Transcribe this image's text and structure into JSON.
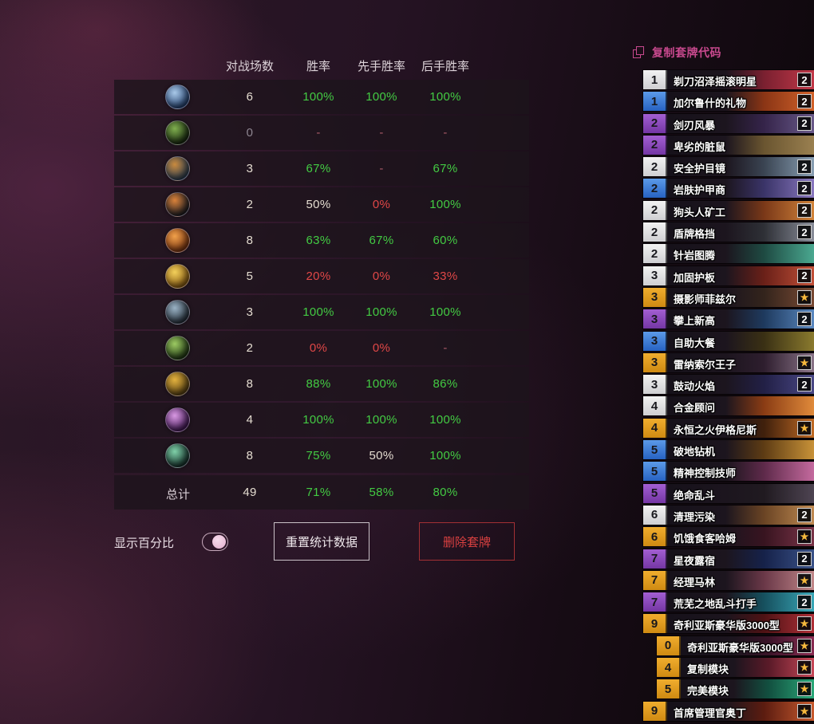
{
  "colors": {
    "positive_green": "#43cb43",
    "negative_red": "#e04747",
    "neutral_value": "#e5ddd1",
    "dimmed_value": "#8d8590",
    "dash_red": "#a85a66",
    "accent_pink": "#c8498e",
    "delete_red": "#d84040",
    "rarity_common": "#dedede",
    "rarity_rare": "#2f6fd0",
    "rarity_epic": "#8b49b8",
    "rarity_legendary": "#e29a1f"
  },
  "stats": {
    "headers": {
      "games": "对战场数",
      "win": "胜率",
      "first": "先手胜率",
      "second": "后手胜率"
    },
    "rows": [
      {
        "class_name": "death-knight",
        "icon_colors": [
          "#a8c8e8",
          "#23406e"
        ],
        "games": "6",
        "games_tone": "neutral",
        "win": "100%",
        "win_tone": "green",
        "first": "100%",
        "first_tone": "green",
        "second": "100%",
        "second_tone": "green"
      },
      {
        "class_name": "demon-hunter",
        "icon_colors": [
          "#7fae4e",
          "#16260e"
        ],
        "games": "0",
        "games_tone": "dim",
        "win": "-",
        "win_tone": "dash",
        "first": "-",
        "first_tone": "dash",
        "second": "-",
        "second_tone": "dash"
      },
      {
        "class_name": "druid",
        "icon_colors": [
          "#c98a3e",
          "#2c3e52"
        ],
        "games": "3",
        "games_tone": "neutral",
        "win": "67%",
        "win_tone": "green",
        "first": "-",
        "first_tone": "dash",
        "second": "67%",
        "second_tone": "green"
      },
      {
        "class_name": "hunter",
        "icon_colors": [
          "#d9823a",
          "#1c1c22"
        ],
        "games": "2",
        "games_tone": "neutral",
        "win": "50%",
        "win_tone": "neutral",
        "first": "0%",
        "first_tone": "red",
        "second": "100%",
        "second_tone": "green"
      },
      {
        "class_name": "mage",
        "icon_colors": [
          "#f0a04a",
          "#7a3410"
        ],
        "games": "8",
        "games_tone": "neutral",
        "win": "63%",
        "win_tone": "green",
        "first": "67%",
        "first_tone": "green",
        "second": "60%",
        "second_tone": "green"
      },
      {
        "class_name": "paladin",
        "icon_colors": [
          "#f2cf5a",
          "#8a5c12"
        ],
        "games": "5",
        "games_tone": "neutral",
        "win": "20%",
        "win_tone": "red",
        "first": "0%",
        "first_tone": "red",
        "second": "33%",
        "second_tone": "red"
      },
      {
        "class_name": "priest",
        "icon_colors": [
          "#9ab2c4",
          "#232d38"
        ],
        "games": "3",
        "games_tone": "neutral",
        "win": "100%",
        "win_tone": "green",
        "first": "100%",
        "first_tone": "green",
        "second": "100%",
        "second_tone": "green"
      },
      {
        "class_name": "rogue",
        "icon_colors": [
          "#9cca62",
          "#1e3512"
        ],
        "games": "2",
        "games_tone": "neutral",
        "win": "0%",
        "win_tone": "red",
        "first": "0%",
        "first_tone": "red",
        "second": "-",
        "second_tone": "dash"
      },
      {
        "class_name": "shaman",
        "icon_colors": [
          "#e2b13e",
          "#574012"
        ],
        "games": "8",
        "games_tone": "neutral",
        "win": "88%",
        "win_tone": "green",
        "first": "100%",
        "first_tone": "green",
        "second": "86%",
        "second_tone": "green"
      },
      {
        "class_name": "warlock",
        "icon_colors": [
          "#d898e2",
          "#401653"
        ],
        "games": "4",
        "games_tone": "neutral",
        "win": "100%",
        "win_tone": "green",
        "first": "100%",
        "first_tone": "green",
        "second": "100%",
        "second_tone": "green"
      },
      {
        "class_name": "warrior",
        "icon_colors": [
          "#7fd0a8",
          "#14302a"
        ],
        "games": "8",
        "games_tone": "neutral",
        "win": "75%",
        "win_tone": "green",
        "first": "50%",
        "first_tone": "neutral",
        "second": "100%",
        "second_tone": "green"
      }
    ],
    "total": {
      "label": "总计",
      "games": "49",
      "games_tone": "neutral",
      "win": "71%",
      "win_tone": "green",
      "first": "58%",
      "first_tone": "green",
      "second": "80%",
      "second_tone": "green"
    }
  },
  "controls": {
    "show_percent_label": "显示百分比",
    "toggle_state": "on",
    "reset_label": "重置统计数据",
    "delete_label": "删除套牌"
  },
  "deck": {
    "copy_code_label": "复制套牌代码",
    "cards": [
      {
        "cost": "1",
        "name": "剃刀沼泽摇滚明星",
        "rarity": "common",
        "badge": "2",
        "indent": false,
        "art": [
          "#7a2030",
          "#c23848"
        ]
      },
      {
        "cost": "1",
        "name": "加尔鲁什的礼物",
        "rarity": "rare",
        "badge": "2",
        "indent": false,
        "art": [
          "#8a3515",
          "#d2622a"
        ]
      },
      {
        "cost": "2",
        "name": "剑刃风暴",
        "rarity": "epic",
        "badge": "2",
        "indent": false,
        "art": [
          "#35244a",
          "#6a5a8a"
        ]
      },
      {
        "cost": "2",
        "name": "卑劣的脏鼠",
        "rarity": "epic",
        "badge": null,
        "indent": false,
        "art": [
          "#6a5530",
          "#9a8050"
        ]
      },
      {
        "cost": "2",
        "name": "安全护目镜",
        "rarity": "common",
        "badge": "2",
        "indent": false,
        "art": [
          "#3a4452",
          "#8aa0b4"
        ]
      },
      {
        "cost": "2",
        "name": "岩肤护甲商",
        "rarity": "rare",
        "badge": "2",
        "indent": false,
        "art": [
          "#3a3468",
          "#8a78c0"
        ]
      },
      {
        "cost": "2",
        "name": "狗头人矿工",
        "rarity": "common",
        "badge": "2",
        "indent": false,
        "art": [
          "#7a3818",
          "#d2843a"
        ]
      },
      {
        "cost": "2",
        "name": "盾牌格挡",
        "rarity": "common",
        "badge": "2",
        "indent": false,
        "art": [
          "#2e3036",
          "#8a8e9a"
        ]
      },
      {
        "cost": "2",
        "name": "针岩图腾",
        "rarity": "common",
        "badge": null,
        "indent": false,
        "art": [
          "#1e4a42",
          "#4aa890"
        ]
      },
      {
        "cost": "3",
        "name": "加固护板",
        "rarity": "common",
        "badge": "2",
        "indent": false,
        "art": [
          "#6a2018",
          "#c25038"
        ]
      },
      {
        "cost": "3",
        "name": "摄影师菲兹尔",
        "rarity": "legendary",
        "badge": "star",
        "indent": false,
        "art": [
          "#33241c",
          "#7a4a34"
        ]
      },
      {
        "cost": "3",
        "name": "攀上新高",
        "rarity": "epic",
        "badge": "2",
        "indent": false,
        "art": [
          "#1e3a5e",
          "#5a88c0"
        ]
      },
      {
        "cost": "3",
        "name": "自助大餐",
        "rarity": "rare",
        "badge": null,
        "indent": false,
        "art": [
          "#3a3014",
          "#8a7a2e"
        ]
      },
      {
        "cost": "3",
        "name": "雷纳索尔王子",
        "rarity": "legendary",
        "badge": "star",
        "indent": false,
        "art": [
          "#2e1e2e",
          "#8a7488"
        ]
      },
      {
        "cost": "3",
        "name": "鼓动火焰",
        "rarity": "common",
        "badge": "2",
        "indent": false,
        "art": [
          "#222046",
          "#4a4886"
        ]
      },
      {
        "cost": "4",
        "name": "合金顾问",
        "rarity": "common",
        "badge": null,
        "indent": false,
        "art": [
          "#8a3c14",
          "#e08a3a"
        ]
      },
      {
        "cost": "4",
        "name": "永恒之火伊格尼斯",
        "rarity": "legendary",
        "badge": "star",
        "indent": false,
        "art": [
          "#40200c",
          "#c06a24"
        ]
      },
      {
        "cost": "5",
        "name": "破地钻机",
        "rarity": "rare",
        "badge": null,
        "indent": false,
        "art": [
          "#5e3c14",
          "#c89238"
        ]
      },
      {
        "cost": "5",
        "name": "精神控制技师",
        "rarity": "rare",
        "badge": null,
        "indent": false,
        "art": [
          "#5e2a4a",
          "#c46a9e"
        ]
      },
      {
        "cost": "5",
        "name": "绝命乱斗",
        "rarity": "epic",
        "badge": null,
        "indent": false,
        "art": [
          "#201a20",
          "#4e4452"
        ]
      },
      {
        "cost": "6",
        "name": "清理污染",
        "rarity": "common",
        "badge": "2",
        "indent": false,
        "art": [
          "#6a4424",
          "#c08a52"
        ]
      },
      {
        "cost": "6",
        "name": "饥饿食客哈姆",
        "rarity": "legendary",
        "badge": "star",
        "indent": false,
        "art": [
          "#381420",
          "#7a3448"
        ]
      },
      {
        "cost": "7",
        "name": "星夜露宿",
        "rarity": "epic",
        "badge": "2",
        "indent": false,
        "art": [
          "#16224a",
          "#3a5288"
        ]
      },
      {
        "cost": "7",
        "name": "经理马林",
        "rarity": "legendary",
        "badge": "star",
        "indent": false,
        "art": [
          "#6a3848",
          "#c2888a"
        ]
      },
      {
        "cost": "7",
        "name": "荒芜之地乱斗打手",
        "rarity": "epic",
        "badge": "2",
        "indent": false,
        "art": [
          "#16505e",
          "#3aa8b8"
        ]
      },
      {
        "cost": "9",
        "name": "奇利亚斯豪华版3000型",
        "rarity": "legendary",
        "badge": "star",
        "indent": false,
        "art": [
          "#4e1214",
          "#b03038"
        ]
      },
      {
        "cost": "0",
        "name": "奇利亚斯豪华版3000型",
        "rarity": "legendary",
        "badge": "star",
        "indent": true,
        "art": [
          "#3a1428",
          "#8a2c52"
        ]
      },
      {
        "cost": "4",
        "name": "复制模块",
        "rarity": "legendary",
        "badge": "star",
        "indent": true,
        "art": [
          "#5a1a28",
          "#c84858"
        ]
      },
      {
        "cost": "5",
        "name": "完美模块",
        "rarity": "legendary",
        "badge": "star",
        "indent": true,
        "art": [
          "#125040",
          "#2aa878"
        ]
      },
      {
        "cost": "9",
        "name": "首席管理官奥丁",
        "rarity": "legendary",
        "badge": "star",
        "indent": false,
        "art": [
          "#5c1c10",
          "#c85a2e"
        ]
      }
    ]
  }
}
